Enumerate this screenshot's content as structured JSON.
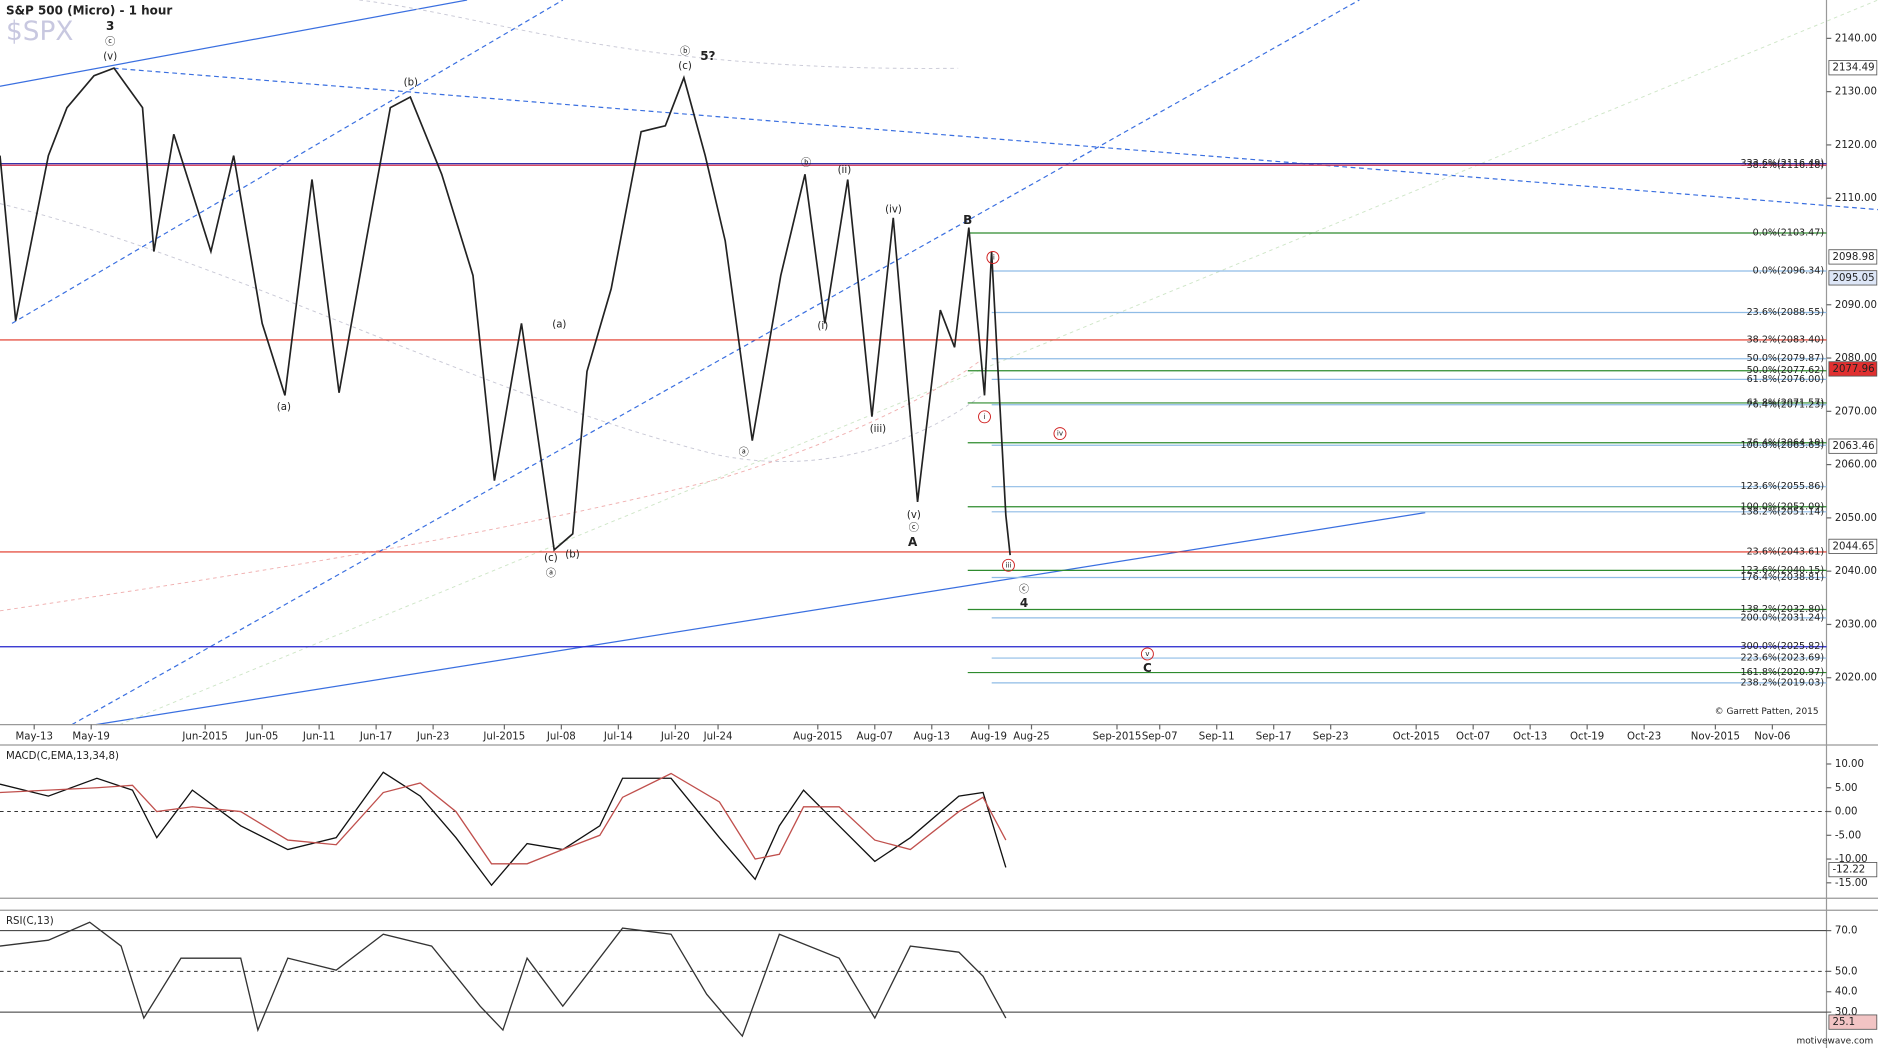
{
  "chart_data": [
    {
      "type": "line",
      "title": "S&P 500 (Micro) - 1 hour",
      "watermark": "$SPX",
      "copyright": "© Garrett Patten, 2015",
      "color": "#222222",
      "x": [
        -2.4,
        -1.3,
        1,
        2.3,
        4.2,
        5.6,
        7.6,
        8.4,
        9.8,
        12.4,
        14,
        16,
        17.6,
        19.5,
        21.4,
        23.3,
        25,
        26.4,
        28.6,
        30.8,
        32.3,
        34.2,
        36.5,
        37.8,
        38.8,
        40.5,
        42.6,
        44.3,
        45.6,
        47.1,
        48.5,
        50.4,
        52.4,
        54.1,
        55.5,
        57.1,
        58.8,
        60.3,
        62,
        63.6,
        64.6,
        65.6,
        66.7,
        67.2,
        67.7,
        68.2,
        68.5
      ],
      "values": [
        2118,
        2087,
        2118,
        2127,
        2133,
        2134.4,
        2127,
        2100,
        2122,
        2100,
        2118,
        2086.5,
        2073,
        2113.5,
        2073.5,
        2102,
        2127,
        2129,
        2114.5,
        2095.5,
        2057,
        2086.5,
        2044,
        2047,
        2077.5,
        2093,
        2122.5,
        2123.6,
        2132.6,
        2118,
        2102,
        2064.5,
        2095.5,
        2114.5,
        2086.5,
        2113.5,
        2069,
        2106.3,
        2053,
        2089,
        2082,
        2104.5,
        2073,
        2100,
        2075,
        2050.5,
        2043
      ],
      "xlim": [
        -2.4,
        125.8
      ],
      "xticks": [
        {
          "value": 0,
          "label": "May-13"
        },
        {
          "value": 4,
          "label": "May-19"
        },
        {
          "value": 12,
          "label": "Jun-2015"
        },
        {
          "value": 16,
          "label": "Jun-05"
        },
        {
          "value": 20,
          "label": "Jun-11"
        },
        {
          "value": 24,
          "label": "Jun-17"
        },
        {
          "value": 28,
          "label": "Jun-23"
        },
        {
          "value": 33,
          "label": "Jul-2015"
        },
        {
          "value": 37,
          "label": "Jul-08"
        },
        {
          "value": 41,
          "label": "Jul-14"
        },
        {
          "value": 45,
          "label": "Jul-20"
        },
        {
          "value": 48,
          "label": "Jul-24"
        },
        {
          "value": 55,
          "label": "Aug-2015"
        },
        {
          "value": 59,
          "label": "Aug-07"
        },
        {
          "value": 63,
          "label": "Aug-13"
        },
        {
          "value": 67,
          "label": "Aug-19"
        },
        {
          "value": 70,
          "label": "Aug-25"
        },
        {
          "value": 76,
          "label": "Sep-2015"
        },
        {
          "value": 79,
          "label": "Sep-07"
        },
        {
          "value": 83,
          "label": "Sep-11"
        },
        {
          "value": 87,
          "label": "Sep-17"
        },
        {
          "value": 91,
          "label": "Sep-23"
        },
        {
          "value": 97,
          "label": "Oct-2015"
        },
        {
          "value": 101,
          "label": "Oct-07"
        },
        {
          "value": 105,
          "label": "Oct-13"
        },
        {
          "value": 109,
          "label": "Oct-19"
        },
        {
          "value": 113,
          "label": "Oct-23"
        },
        {
          "value": 118,
          "label": "Nov-2015"
        },
        {
          "value": 122,
          "label": "Nov-06"
        }
      ],
      "ylim": [
        2011.2,
        2147.2
      ],
      "yticks": [
        {
          "value": 2020,
          "label": "2020.00"
        },
        {
          "value": 2030,
          "label": "2030.00"
        },
        {
          "value": 2040,
          "label": "2040.00"
        },
        {
          "value": 2050,
          "label": "2050.00"
        },
        {
          "value": 2060,
          "label": "2060.00"
        },
        {
          "value": 2070,
          "label": "2070.00"
        },
        {
          "value": 2080,
          "label": "2080.00"
        },
        {
          "value": 2090,
          "label": "2090.00"
        },
        {
          "value": 2110,
          "label": "2110.00"
        },
        {
          "value": 2120,
          "label": "2120.00"
        },
        {
          "value": 2130,
          "label": "2130.00"
        },
        {
          "value": 2140,
          "label": "2140.00"
        }
      ],
      "price_tags": [
        {
          "value": 2134.49,
          "color": "#ffffff"
        },
        {
          "value": 2098.98,
          "color": "#ffffff"
        },
        {
          "value": 2095.05,
          "color": "#dde6f7"
        },
        {
          "value": 2077.96,
          "color": "#e03030"
        },
        {
          "value": 2063.46,
          "color": "#ffffff"
        },
        {
          "value": 2044.65,
          "color": "#ffffff"
        }
      ],
      "levels": [
        {
          "label": "323.6%(2116.49)",
          "value": 2116.49,
          "color": "#3333aa"
        },
        {
          "label": "38.2%(2116.18)",
          "value": 2116.18,
          "color": "#d03050"
        },
        {
          "label": "38.2%(2083.40)",
          "value": 2083.4,
          "color": "#e03020"
        },
        {
          "label": "23.6%(2043.61)",
          "value": 2043.61,
          "color": "#e03020"
        },
        {
          "label": "300.0%(2025.82)",
          "value": 2025.82,
          "color": "#2222cc"
        },
        {
          "label": "0.0%(2103.47)",
          "value": 2103.47,
          "color": "#2e8b2e"
        },
        {
          "label": "50.0%(2077.62)",
          "value": 2077.62,
          "color": "#2e8b2e"
        },
        {
          "label": "61.8%(2071.57)",
          "value": 2071.57,
          "color": "#2e8b2e"
        },
        {
          "label": "76.4%(2064.10)",
          "value": 2064.1,
          "color": "#2e8b2e"
        },
        {
          "label": "100.0%(2052.09)",
          "value": 2052.09,
          "color": "#2e8b2e"
        },
        {
          "label": "123.6%(2040.15)",
          "value": 2040.15,
          "color": "#2e8b2e"
        },
        {
          "label": "138.2%(2032.80)",
          "value": 2032.8,
          "color": "#2e8b2e"
        },
        {
          "label": "161.8%(2020.97)",
          "value": 2020.97,
          "color": "#2e8b2e"
        },
        {
          "label": "0.0%(2096.34)",
          "value": 2096.34,
          "color": "#8fbce6"
        },
        {
          "label": "23.6%(2088.55)",
          "value": 2088.55,
          "color": "#8fbce6"
        },
        {
          "label": "50.0%(2079.87)",
          "value": 2079.87,
          "color": "#8fbce6"
        },
        {
          "label": "61.8%(2076.00)",
          "value": 2076.0,
          "color": "#8fbce6"
        },
        {
          "label": "76.4%(2071.23)",
          "value": 2071.23,
          "color": "#8fbce6"
        },
        {
          "label": "100.0%(2063.63)",
          "value": 2063.63,
          "color": "#8fbce6"
        },
        {
          "label": "123.6%(2055.86)",
          "value": 2055.86,
          "color": "#8fbce6"
        },
        {
          "label": "138.2%(2051.14)",
          "value": 2051.14,
          "color": "#8fbce6"
        },
        {
          "label": "176.4%(2038.81)",
          "value": 2038.81,
          "color": "#8fbce6"
        },
        {
          "label": "200.0%(2031.24)",
          "value": 2031.24,
          "color": "#8fbce6"
        },
        {
          "label": "223.6%(2023.69)",
          "value": 2023.69,
          "color": "#8fbce6"
        },
        {
          "label": "238.2%(2019.03)",
          "value": 2019.03,
          "color": "#8fbce6"
        }
      ],
      "annotations": [
        {
          "text": "3",
          "color": "#1a1acc",
          "bold": true
        },
        {
          "text": "ⓒ",
          "color": "#1a1acc"
        },
        {
          "text": "(v)",
          "color": "#1a1acc"
        },
        {
          "text": "(b)",
          "color": "#1a1acc"
        },
        {
          "text": "(a)",
          "color": "#1a1acc"
        },
        {
          "text": "(a)",
          "color": "#1a1acc"
        },
        {
          "text": "(c)",
          "color": "#1a1acc"
        },
        {
          "text": "ⓐ",
          "color": "#1a1acc"
        },
        {
          "text": "(b)",
          "color": "#1a1acc"
        },
        {
          "text": "ⓑ",
          "color": "#1a1acc"
        },
        {
          "text": "(c)",
          "color": "#1a1acc"
        },
        {
          "text": "5?",
          "color": "#d02020",
          "bold": true
        },
        {
          "text": "ⓑ",
          "color": "#d02020"
        },
        {
          "text": "(ii)",
          "color": "#d02020"
        },
        {
          "text": "(iv)",
          "color": "#d02020"
        },
        {
          "text": "(i)",
          "color": "#d02020"
        },
        {
          "text": "ⓐ",
          "color": "#d02020"
        },
        {
          "text": "(iii)",
          "color": "#d02020"
        },
        {
          "text": "(v)",
          "color": "#d02020"
        },
        {
          "text": "ⓒ",
          "color": "#d02020"
        },
        {
          "text": "A",
          "color": "#d02020",
          "bold": true
        },
        {
          "text": "B",
          "color": "#d02020",
          "bold": true
        },
        {
          "text": "ii",
          "color": "#d02020"
        },
        {
          "text": "i",
          "color": "#d02020"
        },
        {
          "text": "iv",
          "color": "#d02020"
        },
        {
          "text": "iii",
          "color": "#d02020"
        },
        {
          "text": "ⓒ",
          "color": "#1a1acc"
        },
        {
          "text": "4",
          "color": "#1a1acc",
          "bold": true
        },
        {
          "text": "v",
          "color": "#d02020"
        },
        {
          "text": "C",
          "color": "#d02020",
          "bold": true
        }
      ]
    },
    {
      "type": "line",
      "title": "MACD(C,EMA,13,34,8)",
      "x": [
        -2.4,
        1,
        4.4,
        6.9,
        8.6,
        11.1,
        14.5,
        17.8,
        21.2,
        24.5,
        27.1,
        29.6,
        32.1,
        34.6,
        37.1,
        39.7,
        41.3,
        44.7,
        48.1,
        50.6,
        52.3,
        54,
        56.5,
        59,
        61.5,
        64.9,
        66.6,
        68.2
      ],
      "series": [
        {
          "color": "#111111",
          "values": [
            5.75,
            3.25,
            7,
            4.5,
            -5.5,
            4.5,
            -3,
            -8,
            -5.5,
            8.25,
            3.25,
            -5.5,
            -15.5,
            -6.75,
            -8,
            -3,
            7,
            7,
            -5.5,
            -14.25,
            -3,
            4.5,
            -3,
            -10.5,
            -5.5,
            3.25,
            4,
            -11.75
          ]
        },
        {
          "color": "#c0504d",
          "values": [
            4,
            4.5,
            5,
            5.5,
            0,
            1,
            0,
            -6,
            -7,
            4,
            6,
            0,
            -11,
            -11,
            -8,
            -5,
            3,
            8,
            2,
            -10,
            -9,
            1,
            1,
            -6,
            -8,
            0,
            3,
            -6
          ]
        }
      ],
      "ylim": [
        -17.75,
        14
      ],
      "yticks": [
        {
          "value": 10,
          "label": "10.00"
        },
        {
          "value": 5,
          "label": "5.00"
        },
        {
          "value": 0,
          "label": "0.00"
        },
        {
          "value": -5,
          "label": "-5.00"
        },
        {
          "value": -10,
          "label": "-10.00"
        },
        {
          "value": -15,
          "label": "-15.00"
        }
      ],
      "guides": [
        {
          "value": 0,
          "dash": true
        }
      ],
      "price_tags": [
        {
          "value": -12.22,
          "color": "#ffffff"
        }
      ]
    },
    {
      "type": "line",
      "title": "RSI(C,13)",
      "x": [
        -2.4,
        1,
        3.9,
        6.1,
        7.7,
        10.3,
        14.5,
        15.7,
        17.8,
        21.2,
        24.5,
        27.9,
        31.3,
        32.9,
        34.6,
        37.1,
        41.3,
        44.7,
        47.2,
        49.7,
        52.3,
        56.5,
        59,
        61.5,
        64.9,
        66.6,
        68.2
      ],
      "series": [
        {
          "color": "#333333",
          "values": [
            62.4,
            65.3,
            74.1,
            62.4,
            27.1,
            56.5,
            56.5,
            21.2,
            56.5,
            50.6,
            68.2,
            62.4,
            32.9,
            21.2,
            56.5,
            32.9,
            71.2,
            68.2,
            38.8,
            18.2,
            68.2,
            56.5,
            27.1,
            62.4,
            59.4,
            47.6,
            27.1
          ]
        }
      ],
      "ylim": [
        12.4,
        78.8
      ],
      "yticks": [
        {
          "value": 70,
          "label": "70.0"
        },
        {
          "value": 50,
          "label": "50.0"
        },
        {
          "value": 40,
          "label": "40.0"
        },
        {
          "value": 30,
          "label": "30.0"
        }
      ],
      "guides": [
        {
          "value": 70,
          "dash": false
        },
        {
          "value": 50,
          "dash": true
        },
        {
          "value": 30,
          "dash": false
        }
      ],
      "price_tags": [
        {
          "value": 25.1,
          "color": "#f2c4c4"
        }
      ],
      "footer": "motivewave.com"
    }
  ]
}
